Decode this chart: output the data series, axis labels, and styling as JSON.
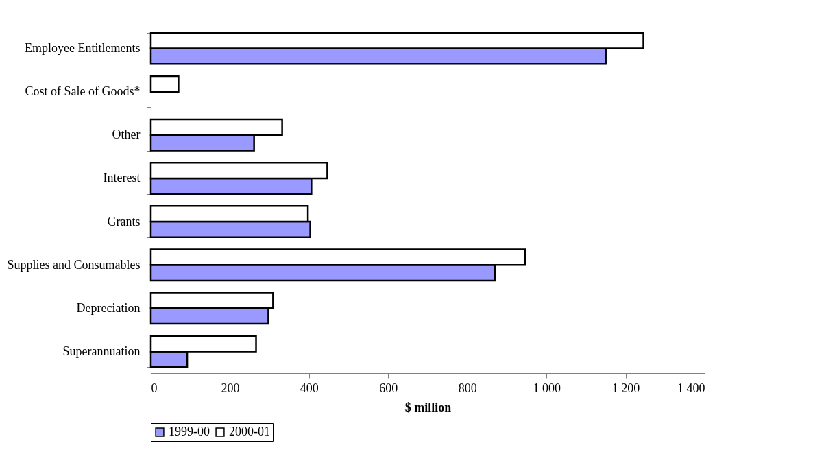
{
  "chart_data": {
    "type": "bar",
    "orientation": "horizontal",
    "xlabel": "$ million",
    "categories": [
      "Employee Entitlements",
      "Cost of Sale of Goods*",
      "Other",
      "Interest",
      "Grants",
      "Supplies and Consumables",
      "Depreciation",
      "Superannuation"
    ],
    "series": [
      {
        "name": "1999-00",
        "color": "#9999ff",
        "values": [
          1150,
          null,
          261,
          406,
          403,
          870,
          297,
          92
        ]
      },
      {
        "name": "2000-01",
        "color": "#ffffff",
        "values": [
          1245,
          70,
          332,
          446,
          397,
          946,
          309,
          266
        ]
      }
    ],
    "xlim": [
      0,
      1400
    ],
    "xticks": [
      0,
      200,
      400,
      600,
      800,
      {
        "value": 1000,
        "label": "1 000"
      },
      {
        "value": 1200,
        "label": "1 200"
      },
      {
        "value": 1400,
        "label": "1 400"
      }
    ],
    "grid": false,
    "legend": "bottom"
  }
}
